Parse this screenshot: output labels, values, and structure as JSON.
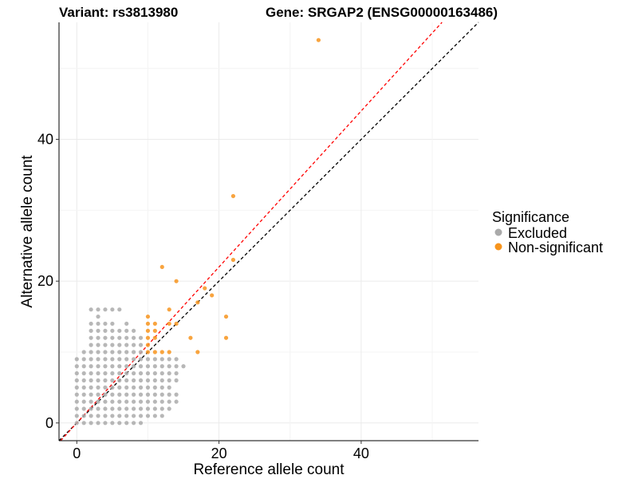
{
  "chart_data": {
    "type": "scatter",
    "title_left": "Variant: rs3813980",
    "title_right": "Gene: SRGAP2 (ENSG00000163486)",
    "xlabel": "Reference allele count",
    "ylabel": "Alternative allele count",
    "xlim": [
      -2.5,
      56.5
    ],
    "ylim": [
      -2.5,
      56.5
    ],
    "xticks": [
      0,
      20,
      40
    ],
    "yticks": [
      0,
      20,
      40
    ],
    "tick_labels_x": [
      "0",
      "20",
      "40"
    ],
    "tick_labels_y": [
      "0",
      "20",
      "40"
    ],
    "grid": true,
    "legend": {
      "title": "Significance",
      "position": "right",
      "entries": [
        {
          "label": "Excluded",
          "color": "#aaaaaa"
        },
        {
          "label": "Non-significant",
          "color": "#f7941d"
        }
      ]
    },
    "reference_lines": [
      {
        "name": "identity",
        "slope": 1.0,
        "intercept": 0,
        "color": "#000000",
        "dash": true
      },
      {
        "name": "expected",
        "slope": 1.1,
        "intercept": 0,
        "color": "#ff0000",
        "dash": true
      }
    ],
    "series": [
      {
        "name": "Excluded",
        "color": "#aaaaaa",
        "points": [
          [
            0,
            0
          ],
          [
            0,
            1
          ],
          [
            0,
            2
          ],
          [
            0,
            3
          ],
          [
            0,
            4
          ],
          [
            0,
            5
          ],
          [
            0,
            6
          ],
          [
            0,
            7
          ],
          [
            0,
            8
          ],
          [
            0,
            9
          ],
          [
            1,
            0
          ],
          [
            1,
            1
          ],
          [
            1,
            2
          ],
          [
            1,
            3
          ],
          [
            1,
            4
          ],
          [
            1,
            5
          ],
          [
            1,
            6
          ],
          [
            1,
            7
          ],
          [
            1,
            8
          ],
          [
            1,
            9
          ],
          [
            1,
            10
          ],
          [
            2,
            0
          ],
          [
            2,
            1
          ],
          [
            2,
            2
          ],
          [
            2,
            3
          ],
          [
            2,
            4
          ],
          [
            2,
            5
          ],
          [
            2,
            6
          ],
          [
            2,
            7
          ],
          [
            2,
            8
          ],
          [
            2,
            9
          ],
          [
            2,
            10
          ],
          [
            2,
            11
          ],
          [
            2,
            12
          ],
          [
            2,
            13
          ],
          [
            2,
            14
          ],
          [
            2,
            16
          ],
          [
            3,
            0
          ],
          [
            3,
            1
          ],
          [
            3,
            2
          ],
          [
            3,
            3
          ],
          [
            3,
            4
          ],
          [
            3,
            5
          ],
          [
            3,
            6
          ],
          [
            3,
            7
          ],
          [
            3,
            8
          ],
          [
            3,
            9
          ],
          [
            3,
            10
          ],
          [
            3,
            11
          ],
          [
            3,
            12
          ],
          [
            3,
            13
          ],
          [
            3,
            14
          ],
          [
            3,
            15
          ],
          [
            3,
            16
          ],
          [
            4,
            0
          ],
          [
            4,
            1
          ],
          [
            4,
            2
          ],
          [
            4,
            3
          ],
          [
            4,
            4
          ],
          [
            4,
            5
          ],
          [
            4,
            6
          ],
          [
            4,
            7
          ],
          [
            4,
            8
          ],
          [
            4,
            9
          ],
          [
            4,
            10
          ],
          [
            4,
            11
          ],
          [
            4,
            12
          ],
          [
            4,
            13
          ],
          [
            4,
            14
          ],
          [
            4,
            16
          ],
          [
            5,
            0
          ],
          [
            5,
            1
          ],
          [
            5,
            2
          ],
          [
            5,
            3
          ],
          [
            5,
            4
          ],
          [
            5,
            5
          ],
          [
            5,
            6
          ],
          [
            5,
            7
          ],
          [
            5,
            8
          ],
          [
            5,
            9
          ],
          [
            5,
            10
          ],
          [
            5,
            11
          ],
          [
            5,
            12
          ],
          [
            5,
            13
          ],
          [
            5,
            14
          ],
          [
            5,
            16
          ],
          [
            6,
            0
          ],
          [
            6,
            1
          ],
          [
            6,
            2
          ],
          [
            6,
            3
          ],
          [
            6,
            4
          ],
          [
            6,
            5
          ],
          [
            6,
            6
          ],
          [
            6,
            7
          ],
          [
            6,
            8
          ],
          [
            6,
            9
          ],
          [
            6,
            10
          ],
          [
            6,
            11
          ],
          [
            6,
            12
          ],
          [
            6,
            13
          ],
          [
            6,
            16
          ],
          [
            7,
            0
          ],
          [
            7,
            1
          ],
          [
            7,
            2
          ],
          [
            7,
            3
          ],
          [
            7,
            4
          ],
          [
            7,
            5
          ],
          [
            7,
            6
          ],
          [
            7,
            7
          ],
          [
            7,
            8
          ],
          [
            7,
            9
          ],
          [
            7,
            10
          ],
          [
            7,
            11
          ],
          [
            7,
            12
          ],
          [
            7,
            13
          ],
          [
            7,
            14
          ],
          [
            8,
            0
          ],
          [
            8,
            1
          ],
          [
            8,
            2
          ],
          [
            8,
            3
          ],
          [
            8,
            4
          ],
          [
            8,
            5
          ],
          [
            8,
            6
          ],
          [
            8,
            7
          ],
          [
            8,
            8
          ],
          [
            8,
            9
          ],
          [
            8,
            10
          ],
          [
            8,
            11
          ],
          [
            8,
            12
          ],
          [
            8,
            13
          ],
          [
            9,
            0
          ],
          [
            9,
            1
          ],
          [
            9,
            2
          ],
          [
            9,
            3
          ],
          [
            9,
            4
          ],
          [
            9,
            5
          ],
          [
            9,
            6
          ],
          [
            9,
            7
          ],
          [
            9,
            8
          ],
          [
            9,
            9
          ],
          [
            9,
            10
          ],
          [
            9,
            11
          ],
          [
            9,
            12
          ],
          [
            10,
            1
          ],
          [
            10,
            2
          ],
          [
            10,
            3
          ],
          [
            10,
            4
          ],
          [
            10,
            5
          ],
          [
            10,
            6
          ],
          [
            10,
            7
          ],
          [
            10,
            8
          ],
          [
            10,
            9
          ],
          [
            11,
            1
          ],
          [
            11,
            2
          ],
          [
            11,
            3
          ],
          [
            11,
            4
          ],
          [
            11,
            5
          ],
          [
            11,
            6
          ],
          [
            11,
            7
          ],
          [
            11,
            8
          ],
          [
            11,
            9
          ],
          [
            12,
            1
          ],
          [
            12,
            2
          ],
          [
            12,
            3
          ],
          [
            12,
            4
          ],
          [
            12,
            5
          ],
          [
            12,
            6
          ],
          [
            12,
            7
          ],
          [
            12,
            8
          ],
          [
            12,
            9
          ],
          [
            13,
            2
          ],
          [
            13,
            3
          ],
          [
            13,
            4
          ],
          [
            13,
            5
          ],
          [
            13,
            6
          ],
          [
            13,
            7
          ],
          [
            13,
            8
          ],
          [
            13,
            9
          ],
          [
            14,
            3
          ],
          [
            14,
            4
          ],
          [
            14,
            6
          ],
          [
            14,
            7
          ],
          [
            14,
            8
          ],
          [
            14,
            9
          ],
          [
            15,
            8
          ]
        ]
      },
      {
        "name": "Non-significant",
        "color": "#f7941d",
        "points": [
          [
            10,
            10
          ],
          [
            10,
            11
          ],
          [
            10,
            12
          ],
          [
            10,
            13
          ],
          [
            10,
            14
          ],
          [
            10,
            15
          ],
          [
            11,
            10
          ],
          [
            11,
            12
          ],
          [
            11,
            13
          ],
          [
            11,
            14
          ],
          [
            12,
            10
          ],
          [
            12,
            22
          ],
          [
            13,
            10
          ],
          [
            13,
            14
          ],
          [
            13,
            16
          ],
          [
            14,
            14
          ],
          [
            14,
            20
          ],
          [
            16,
            12
          ],
          [
            17,
            10
          ],
          [
            17,
            17
          ],
          [
            18,
            19
          ],
          [
            19,
            18
          ],
          [
            21,
            12
          ],
          [
            21,
            15
          ],
          [
            22,
            23
          ],
          [
            22,
            32
          ],
          [
            34,
            54
          ]
        ]
      }
    ]
  }
}
